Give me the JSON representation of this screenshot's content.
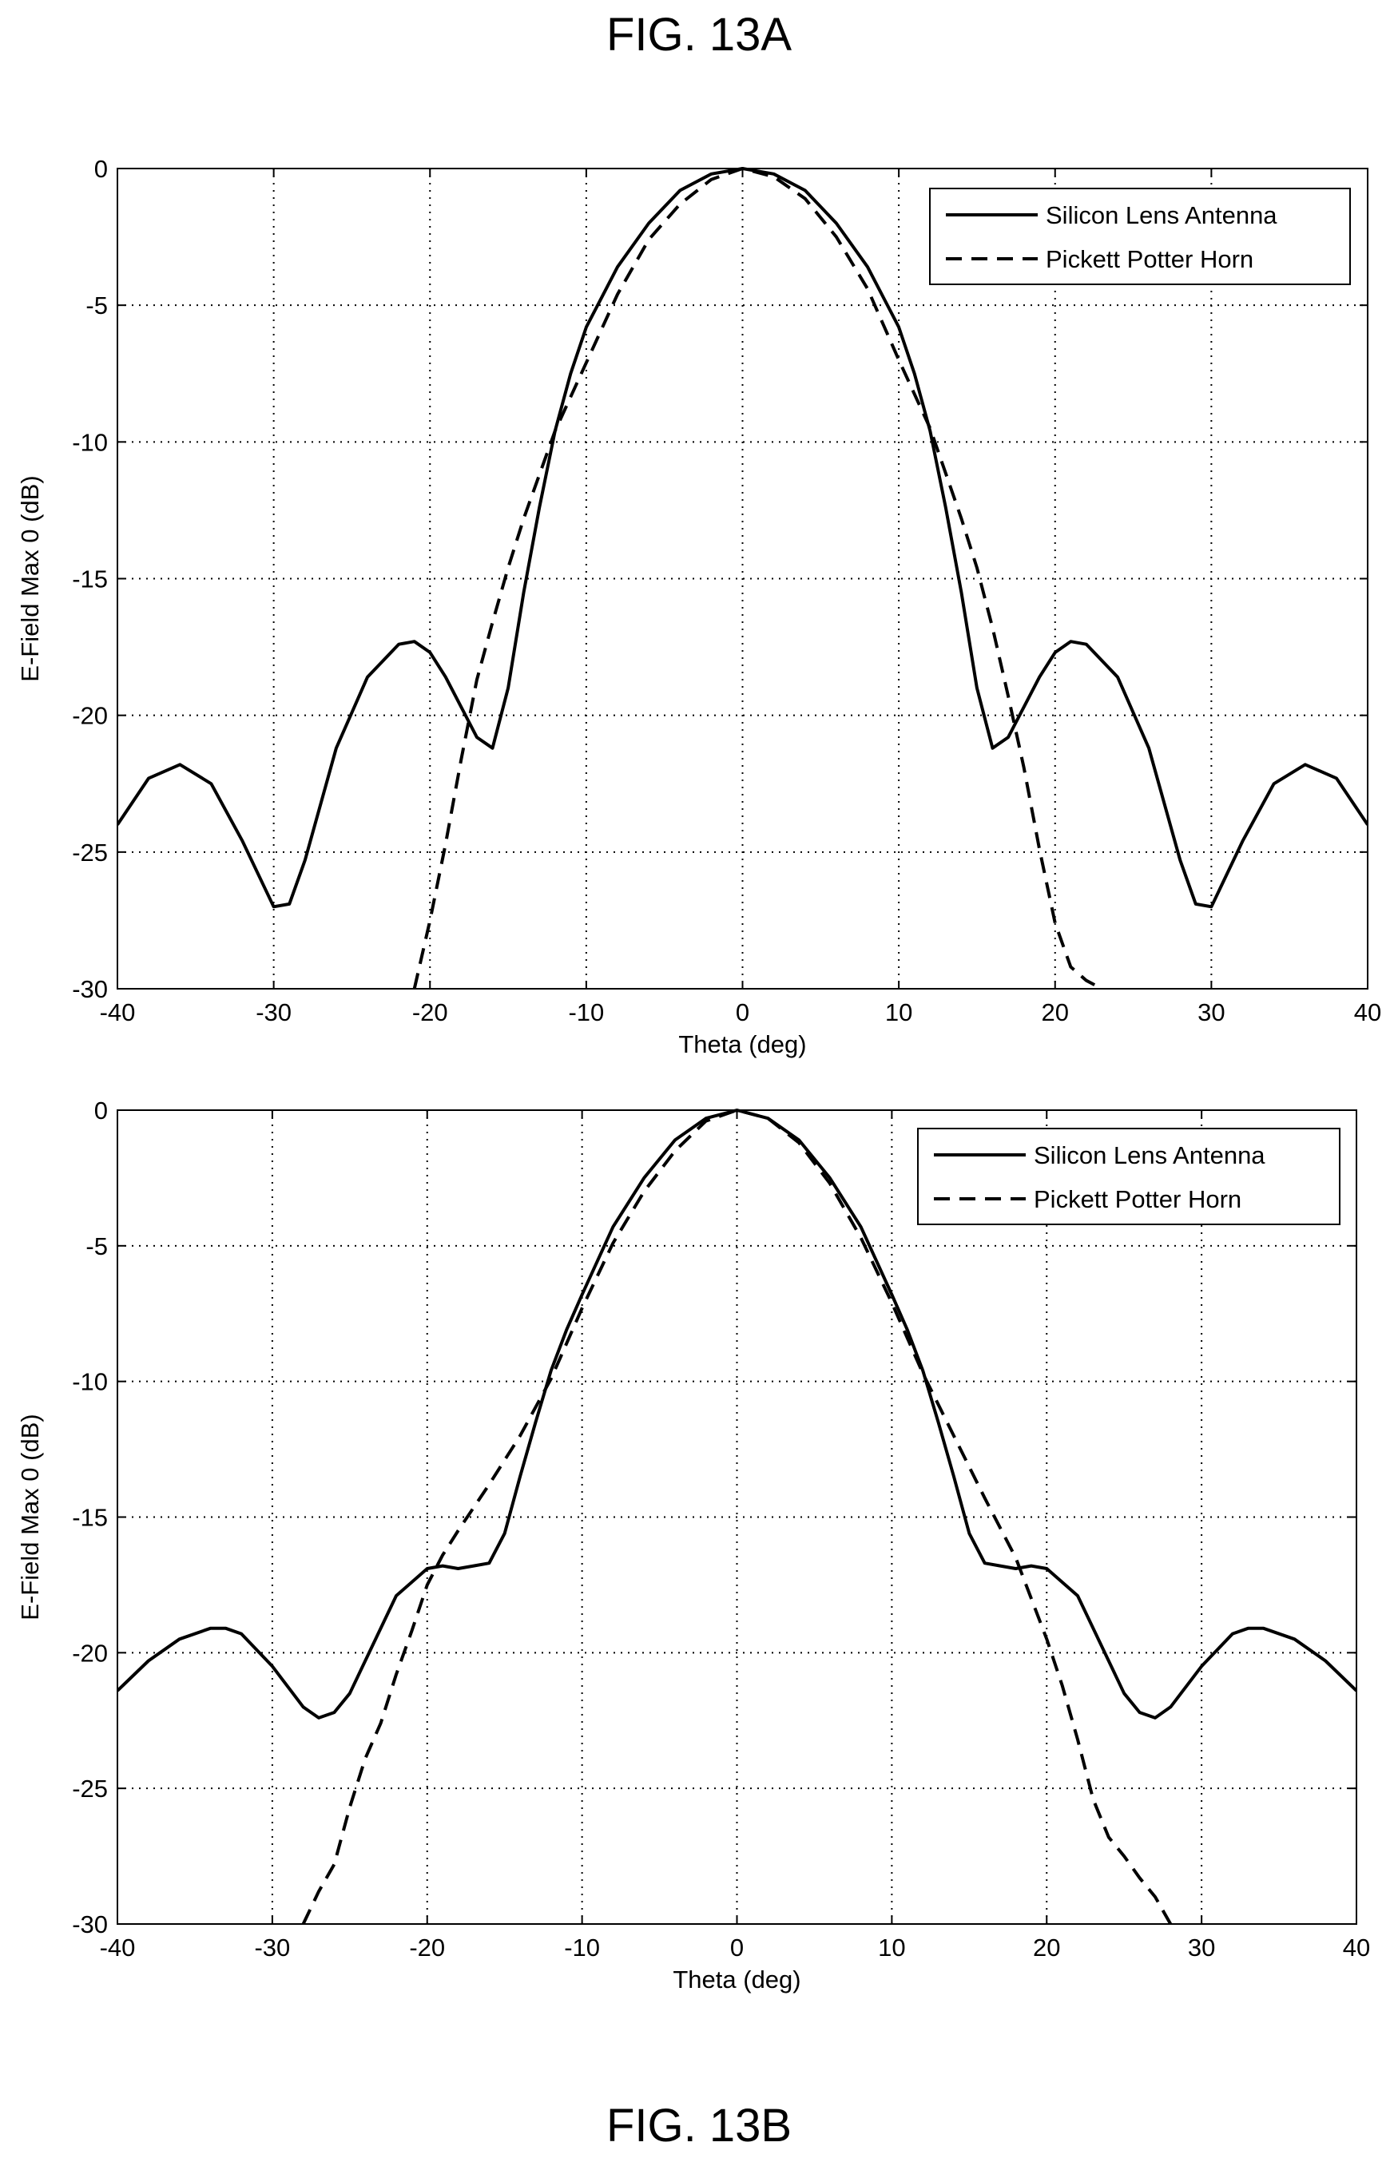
{
  "figures": {
    "top_label": "FIG. 13A",
    "bottom_label": "FIG. 13B"
  },
  "chart_data": [
    {
      "type": "line",
      "xlabel": "Theta (deg)",
      "ylabel": "E-Field Max 0 (dB)",
      "xlim": [
        -40,
        40
      ],
      "ylim": [
        -30,
        0
      ],
      "xticks": [
        -40,
        -30,
        -20,
        -10,
        0,
        10,
        20,
        30,
        40
      ],
      "yticks": [
        0,
        -5,
        -10,
        -15,
        -20,
        -25,
        -30
      ],
      "grid": true,
      "legend_position": "top-right",
      "series": [
        {
          "name": "Silicon Lens Antenna",
          "style": "solid",
          "x": [
            -40,
            -38,
            -36,
            -34,
            -32,
            -30,
            -29,
            -28,
            -26,
            -24,
            -22,
            -21,
            -20,
            -19,
            -18,
            -17,
            -16,
            -15,
            -14,
            -13,
            -12,
            -11,
            -10,
            -8,
            -6,
            -4,
            -2,
            0,
            2,
            4,
            6,
            8,
            10,
            11,
            12,
            13,
            14,
            15,
            16,
            17,
            18,
            19,
            20,
            21,
            22,
            24,
            26,
            28,
            29,
            30,
            32,
            34,
            36,
            38,
            40
          ],
          "y": [
            -24,
            -22.3,
            -21.8,
            -22.5,
            -24.6,
            -27,
            -26.9,
            -25.3,
            -21.2,
            -18.6,
            -17.4,
            -17.3,
            -17.7,
            -18.6,
            -19.7,
            -20.8,
            -21.2,
            -19,
            -15.5,
            -12.4,
            -9.6,
            -7.5,
            -5.8,
            -3.6,
            -2,
            -0.8,
            -0.2,
            0,
            -0.2,
            -0.8,
            -2,
            -3.6,
            -5.8,
            -7.5,
            -9.6,
            -12.4,
            -15.5,
            -19,
            -21.2,
            -20.8,
            -19.7,
            -18.6,
            -17.7,
            -17.3,
            -17.4,
            -18.6,
            -21.2,
            -25.3,
            -26.9,
            -27,
            -24.6,
            -22.5,
            -21.8,
            -22.3,
            -24
          ]
        },
        {
          "name": "Pickett Potter Horn",
          "style": "dashed",
          "x": [
            -21,
            -20,
            -19,
            -18,
            -17,
            -16,
            -15,
            -14,
            -12,
            -10,
            -8,
            -6,
            -4,
            -2,
            0,
            2,
            4,
            6,
            8,
            10,
            12,
            14,
            15,
            16,
            17,
            18,
            19,
            20,
            21,
            22,
            23
          ],
          "y": [
            -30,
            -27.5,
            -24.7,
            -21.6,
            -18.7,
            -16.6,
            -14.6,
            -12.8,
            -9.6,
            -7.1,
            -4.6,
            -2.6,
            -1.3,
            -0.4,
            0,
            -0.3,
            -1.1,
            -2.5,
            -4.4,
            -7,
            -9.5,
            -12.8,
            -14.6,
            -16.8,
            -19.3,
            -21.9,
            -24.9,
            -27.6,
            -29.2,
            -29.7,
            -30
          ]
        }
      ]
    },
    {
      "type": "line",
      "xlabel": "Theta (deg)",
      "ylabel": "E-Field Max 0 (dB)",
      "xlim": [
        -40,
        40
      ],
      "ylim": [
        -30,
        0
      ],
      "xticks": [
        -40,
        -30,
        -20,
        -10,
        0,
        10,
        20,
        30,
        40
      ],
      "yticks": [
        0,
        -5,
        -10,
        -15,
        -20,
        -25,
        -30
      ],
      "grid": true,
      "legend_position": "top-right",
      "series": [
        {
          "name": "Silicon Lens Antenna",
          "style": "solid",
          "x": [
            -40,
            -38,
            -36,
            -34,
            -33,
            -32,
            -30,
            -28,
            -27,
            -26,
            -25,
            -24,
            -22,
            -20,
            -19,
            -18,
            -17,
            -16,
            -15,
            -14,
            -13,
            -12,
            -11,
            -10,
            -8,
            -6,
            -4,
            -2,
            0,
            2,
            4,
            6,
            8,
            10,
            11,
            12,
            13,
            14,
            15,
            16,
            17,
            18,
            19,
            20,
            22,
            24,
            25,
            26,
            27,
            28,
            30,
            32,
            33,
            34,
            36,
            38,
            40
          ],
          "y": [
            -21.4,
            -20.3,
            -19.5,
            -19.1,
            -19.1,
            -19.3,
            -20.5,
            -22,
            -22.4,
            -22.2,
            -21.5,
            -20.3,
            -17.9,
            -16.9,
            -16.8,
            -16.9,
            -16.8,
            -16.7,
            -15.6,
            -13.5,
            -11.5,
            -9.6,
            -8.1,
            -6.8,
            -4.3,
            -2.5,
            -1.1,
            -0.3,
            0,
            -0.3,
            -1.1,
            -2.5,
            -4.3,
            -6.8,
            -8.1,
            -9.6,
            -11.5,
            -13.5,
            -15.6,
            -16.7,
            -16.8,
            -16.9,
            -16.8,
            -16.9,
            -17.9,
            -20.3,
            -21.5,
            -22.2,
            -22.4,
            -22,
            -20.5,
            -19.3,
            -19.1,
            -19.1,
            -19.5,
            -20.3,
            -21.4
          ]
        },
        {
          "name": "Pickett Potter Horn",
          "style": "dashed",
          "x": [
            -28,
            -27,
            -26,
            -25,
            -24,
            -23,
            -22,
            -21,
            -20,
            -19,
            -18,
            -16,
            -14,
            -12,
            -10,
            -8,
            -6,
            -4,
            -2,
            0,
            2,
            4,
            6,
            8,
            10,
            12,
            14,
            16,
            18,
            19,
            20,
            21,
            22,
            23,
            24,
            25,
            26,
            27,
            28
          ],
          "y": [
            -30,
            -28.8,
            -27.8,
            -25.7,
            -23.9,
            -22.6,
            -20.8,
            -19.2,
            -17.5,
            -16.4,
            -15.5,
            -13.8,
            -12,
            -9.9,
            -7.3,
            -4.9,
            -3,
            -1.5,
            -0.4,
            0,
            -0.3,
            -1.2,
            -2.7,
            -4.7,
            -7.1,
            -9.7,
            -12,
            -14.3,
            -16.5,
            -18,
            -19.5,
            -21.2,
            -23.2,
            -25.4,
            -26.8,
            -27.5,
            -28.3,
            -29,
            -30
          ]
        }
      ]
    }
  ]
}
